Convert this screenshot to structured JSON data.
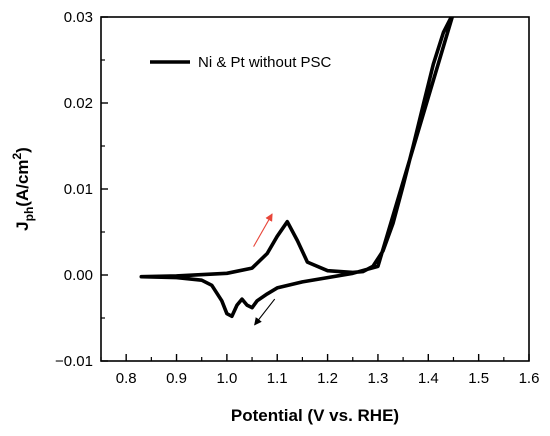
{
  "chart_data": {
    "type": "line",
    "title": "",
    "xlabel": "Potential (V vs. RHE)",
    "ylabel": {
      "main": "J",
      "sub": "ph",
      "rest": "(A/cm",
      "sup": "2",
      "close": ")"
    },
    "xlim": [
      0.75,
      1.6
    ],
    "ylim": [
      -0.01,
      0.03
    ],
    "xticks": [
      "0.8",
      "0.9",
      "1.0",
      "1.1",
      "1.2",
      "1.3",
      "1.4",
      "1.5",
      "1.6"
    ],
    "yticks": [
      "-0.01",
      "0.00",
      "0.01",
      "0.02",
      "0.03"
    ],
    "grid": false,
    "legend_position": "top-left",
    "series": [
      {
        "name": "Ni & Pt without PSC",
        "color": "#000000",
        "forward": {
          "x": [
            0.83,
            0.9,
            1.0,
            1.05,
            1.08,
            1.1,
            1.12,
            1.14,
            1.16,
            1.2,
            1.25,
            1.27,
            1.29,
            1.31,
            1.33,
            1.35,
            1.37,
            1.39,
            1.41,
            1.43,
            1.45
          ],
          "y": [
            -0.0002,
            -0.0001,
            0.0002,
            0.0008,
            0.0025,
            0.0045,
            0.0062,
            0.004,
            0.0015,
            0.0005,
            0.0003,
            0.0004,
            0.001,
            0.0028,
            0.006,
            0.0104,
            0.015,
            0.0198,
            0.0245,
            0.0282,
            0.0305
          ]
        },
        "reverse": {
          "x": [
            1.45,
            1.3,
            1.25,
            1.2,
            1.15,
            1.1,
            1.08,
            1.06,
            1.05,
            1.04,
            1.03,
            1.02,
            1.01,
            1.0,
            0.99,
            0.97,
            0.95,
            0.9,
            0.83
          ],
          "y": [
            0.0305,
            0.001,
            0.0002,
            -0.0003,
            -0.0008,
            -0.0015,
            -0.0022,
            -0.003,
            -0.0038,
            -0.0035,
            -0.0028,
            -0.0035,
            -0.0048,
            -0.0045,
            -0.003,
            -0.0012,
            -0.0006,
            -0.0003,
            -0.0002
          ]
        }
      }
    ],
    "annotations": [
      {
        "type": "arrow",
        "color": "#e8463a",
        "from": [
          1.053,
          0.0033
        ],
        "to": [
          1.09,
          0.0071
        ]
      },
      {
        "type": "arrow",
        "color": "#000000",
        "from": [
          1.095,
          -0.0028
        ],
        "to": [
          1.055,
          -0.0058
        ]
      }
    ]
  }
}
